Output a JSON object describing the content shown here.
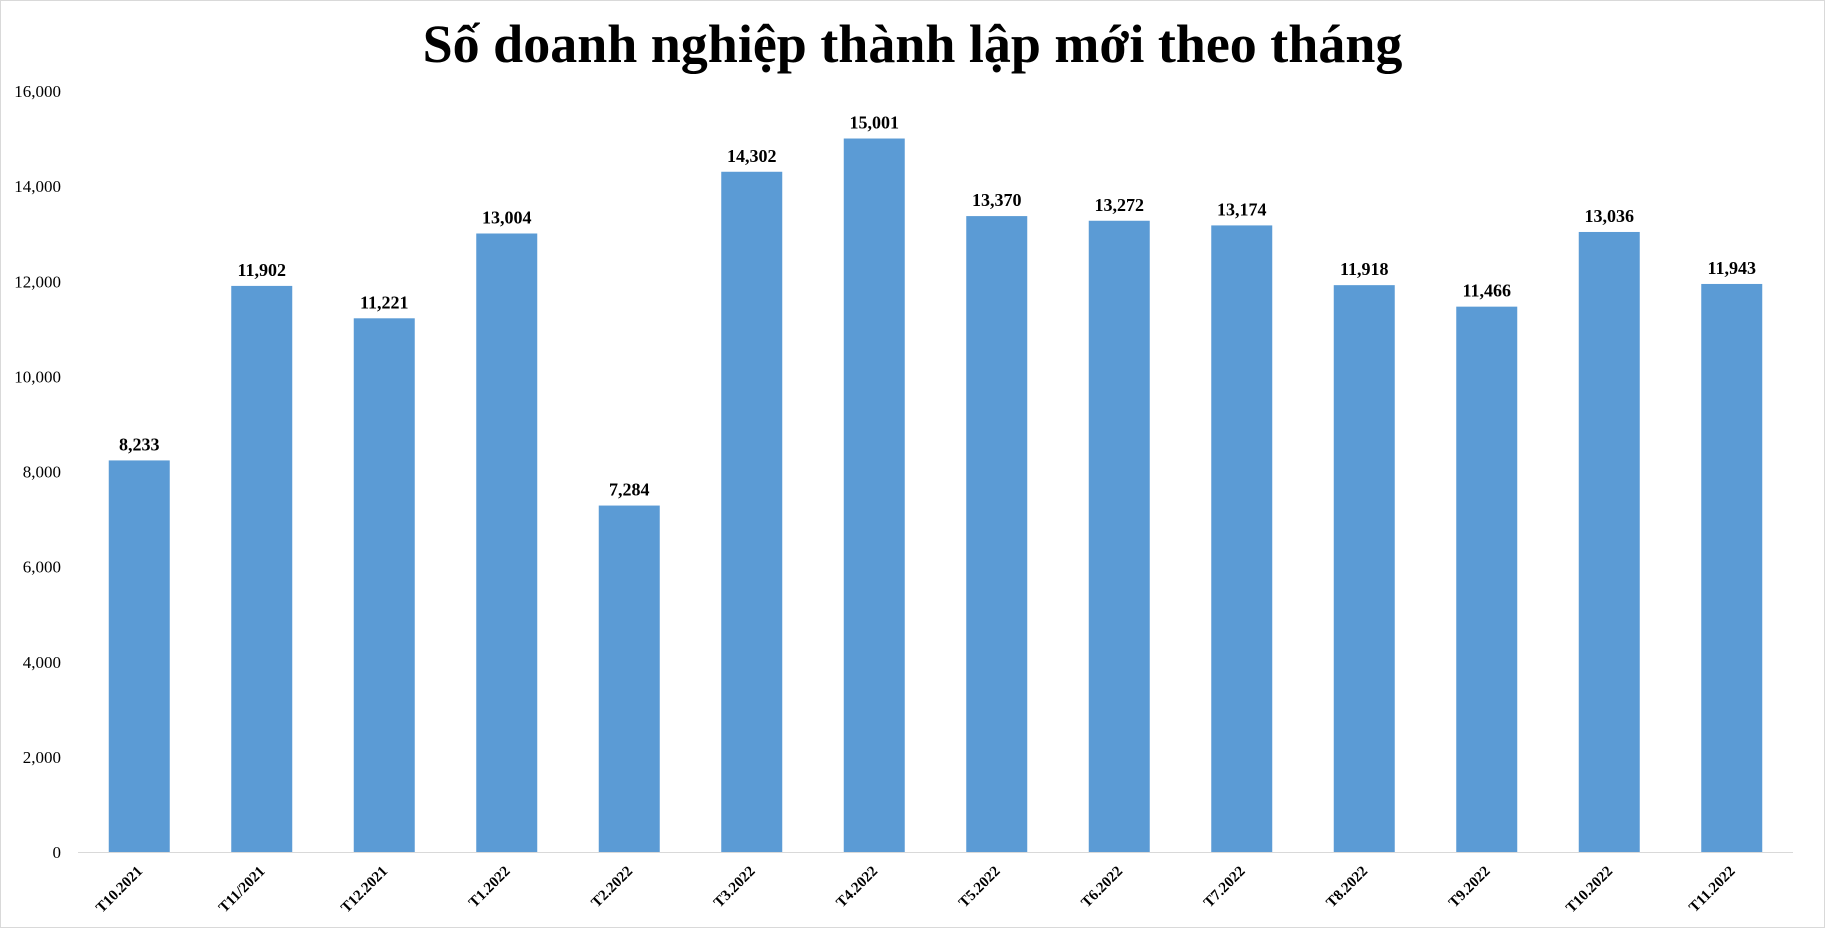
{
  "chart_data": {
    "type": "bar",
    "title": "Số doanh nghiệp thành lập mới theo tháng",
    "xlabel": "",
    "ylabel": "",
    "categories": [
      "T10.2021",
      "T11/2021",
      "T12.2021",
      "T1.2022",
      "T2.2022",
      "T3.2022",
      "T4.2022",
      "T5.2022",
      "T6.2022",
      "T7.2022",
      "T8.2022",
      "T9.2022",
      "T10.2022",
      "T11.2022"
    ],
    "values": [
      8233,
      11902,
      11221,
      13004,
      7284,
      14302,
      15001,
      13370,
      13272,
      13174,
      11918,
      11466,
      13036,
      11943
    ],
    "value_labels": [
      "8,233",
      "11,902",
      "11,221",
      "13,004",
      "7,284",
      "14,302",
      "15,001",
      "13,370",
      "13,272",
      "13,174",
      "11,918",
      "11,466",
      "13,036",
      "11,943"
    ],
    "ylim": [
      0,
      16000
    ],
    "yticks": [
      0,
      2000,
      4000,
      6000,
      8000,
      10000,
      12000,
      14000,
      16000
    ],
    "ytick_labels": [
      "0",
      "2,000",
      "4,000",
      "6,000",
      "8,000",
      "10,000",
      "12,000",
      "14,000",
      "16,000"
    ],
    "grid": false,
    "legend": "none",
    "bar_color": "#5b9bd5",
    "axis_color": "#d9d9d9"
  }
}
